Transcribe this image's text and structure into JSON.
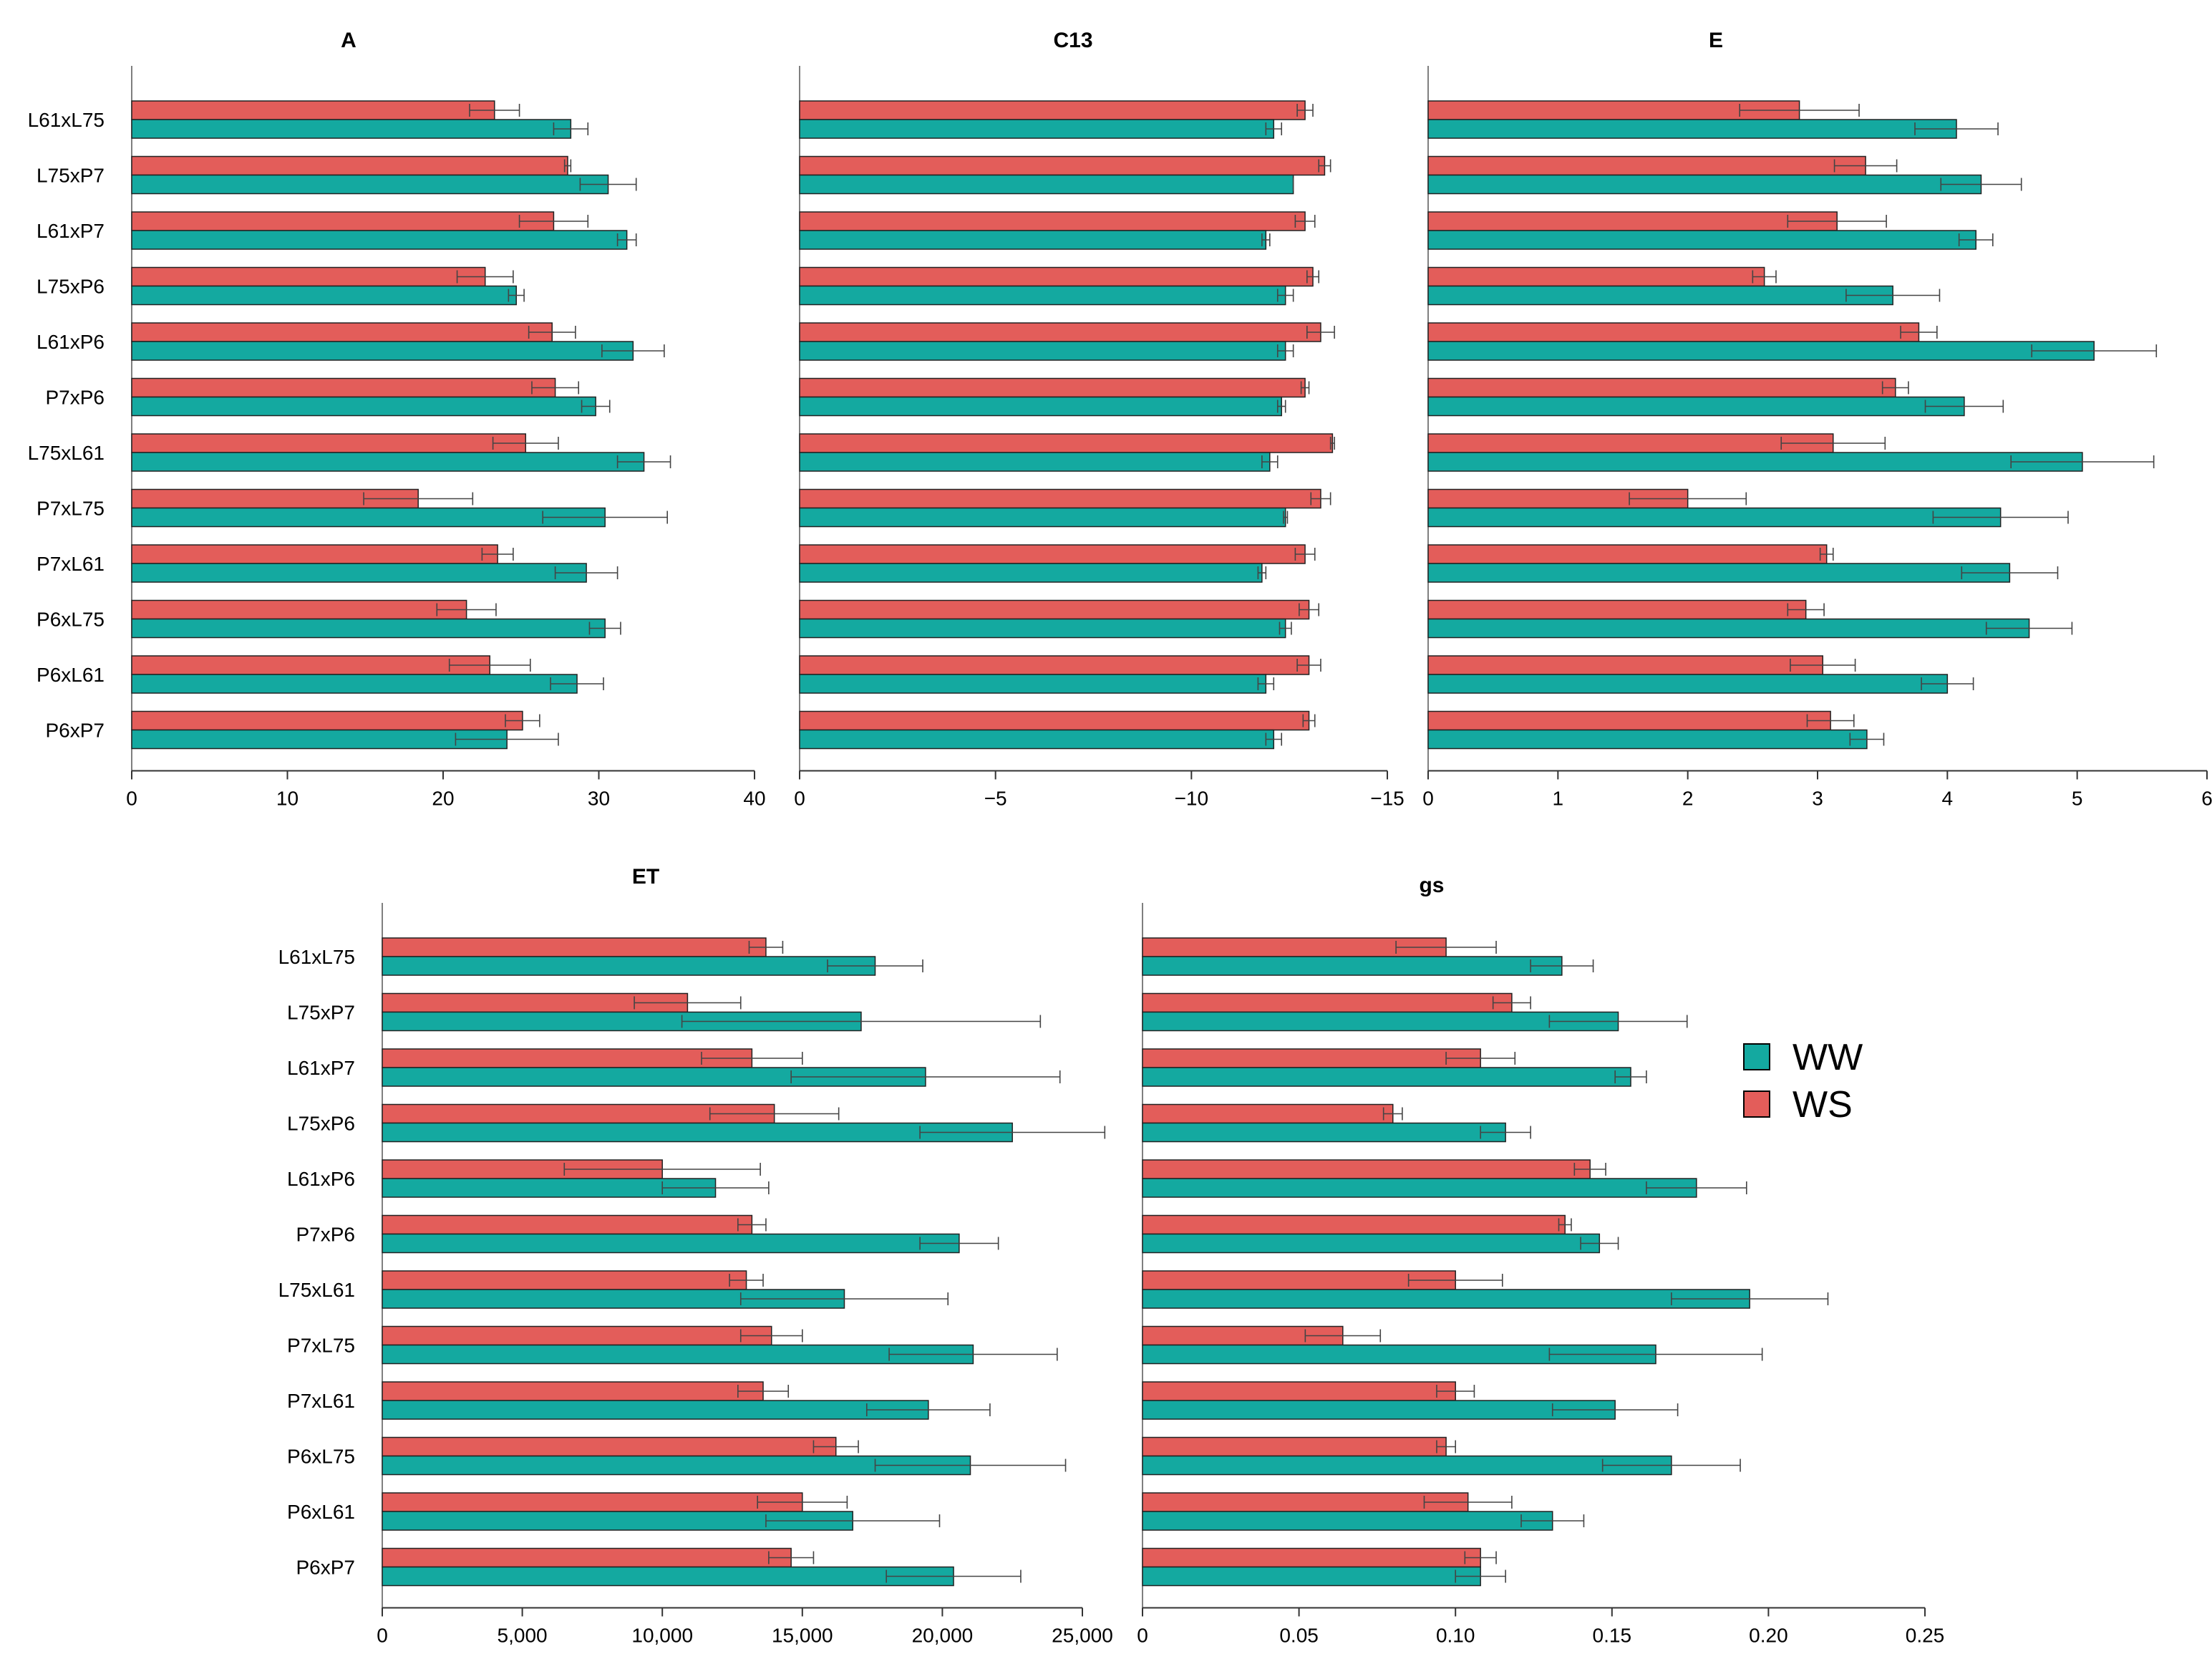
{
  "categories": [
    "L61xL75",
    "L75xP7",
    "L61xP7",
    "L75xP6",
    "L61xP6",
    "P7xP6",
    "L75xL61",
    "P7xL75",
    "P7xL61",
    "P6xL75",
    "P6xL61",
    "P6xP7"
  ],
  "legend": [
    {
      "label": "WW",
      "color": "#14a9a0"
    },
    {
      "label": "WS",
      "color": "#e35d5a"
    }
  ],
  "colors": {
    "WW": "#14a9a0",
    "WS": "#e35d5a"
  },
  "chart_data": [
    {
      "type": "bar",
      "orientation": "horizontal",
      "title": "A",
      "xlim": [
        0,
        40
      ],
      "xticks": [
        0,
        10,
        20,
        30,
        40
      ],
      "tick_labels": [
        "0",
        "10",
        "20",
        "30",
        "40"
      ],
      "ww": [
        28.2,
        30.6,
        31.8,
        24.7,
        32.2,
        29.8,
        32.9,
        30.4,
        29.2,
        30.4,
        28.6,
        24.1
      ],
      "ww_err": [
        1.1,
        1.8,
        0.6,
        0.5,
        2.0,
        0.9,
        1.7,
        4.0,
        2.0,
        1.0,
        1.7,
        3.3
      ],
      "ws": [
        23.3,
        28.0,
        27.1,
        22.7,
        27.0,
        27.2,
        25.3,
        18.4,
        23.5,
        21.5,
        23.0,
        25.1
      ],
      "ws_err": [
        1.6,
        0.2,
        2.2,
        1.8,
        1.5,
        1.5,
        2.1,
        3.5,
        1.0,
        1.9,
        2.6,
        1.1
      ]
    },
    {
      "type": "bar",
      "orientation": "horizontal",
      "title": "C13",
      "xlim": [
        0,
        -15
      ],
      "xticks": [
        0,
        -5,
        -10,
        -15
      ],
      "tick_labels": [
        "0",
        "−5",
        "−10",
        "−15"
      ],
      "ww": [
        -12.1,
        -12.6,
        -11.9,
        -12.4,
        -12.4,
        -12.3,
        -12.0,
        -12.4,
        -11.8,
        -12.4,
        -11.9,
        -12.1
      ],
      "ww_err": [
        0.2,
        0.0,
        0.1,
        0.2,
        0.2,
        0.1,
        0.2,
        0.05,
        0.1,
        0.15,
        0.2,
        0.2
      ],
      "ws": [
        -12.9,
        -13.4,
        -12.9,
        -13.1,
        -13.3,
        -12.9,
        -13.6,
        -13.3,
        -12.9,
        -13.0,
        -13.0,
        -13.0
      ],
      "ws_err": [
        0.2,
        0.15,
        0.25,
        0.15,
        0.35,
        0.1,
        0.05,
        0.25,
        0.25,
        0.25,
        0.3,
        0.15
      ]
    },
    {
      "type": "bar",
      "orientation": "horizontal",
      "title": "E",
      "xlim": [
        0,
        6
      ],
      "xticks": [
        0,
        1,
        2,
        3,
        4,
        5,
        6
      ],
      "tick_labels": [
        "0",
        "1",
        "2",
        "3",
        "4",
        "5",
        "6"
      ],
      "ww": [
        4.07,
        4.26,
        4.22,
        3.58,
        5.13,
        4.13,
        5.04,
        4.41,
        4.48,
        4.63,
        4.0,
        3.38
      ],
      "ww_err": [
        0.32,
        0.31,
        0.13,
        0.36,
        0.48,
        0.3,
        0.55,
        0.52,
        0.37,
        0.33,
        0.2,
        0.13
      ],
      "ws": [
        2.86,
        3.37,
        3.15,
        2.59,
        3.78,
        3.6,
        3.12,
        2.0,
        3.07,
        2.91,
        3.04,
        3.1
      ],
      "ws_err": [
        0.46,
        0.24,
        0.38,
        0.09,
        0.14,
        0.1,
        0.4,
        0.45,
        0.05,
        0.14,
        0.25,
        0.18
      ]
    },
    {
      "type": "bar",
      "orientation": "horizontal",
      "title": "ET",
      "xlim": [
        0,
        25000
      ],
      "xticks": [
        0,
        5000,
        10000,
        15000,
        20000,
        25000
      ],
      "tick_labels": [
        "0",
        "5,000",
        "10,000",
        "15,000",
        "20,000",
        "25,000"
      ],
      "ww": [
        17600,
        17100,
        19400,
        22500,
        11900,
        20600,
        16500,
        21100,
        19500,
        21000,
        16800,
        20400
      ],
      "ww_err": [
        1700,
        6400,
        4800,
        3300,
        1900,
        1400,
        3700,
        3000,
        2200,
        3400,
        3100,
        2400
      ],
      "ws": [
        13700,
        10900,
        13200,
        14000,
        10000,
        13200,
        13000,
        13900,
        13600,
        16200,
        15000,
        14600
      ],
      "ws_err": [
        600,
        1900,
        1800,
        2300,
        3500,
        500,
        600,
        1100,
        900,
        800,
        1600,
        800
      ]
    },
    {
      "type": "bar",
      "orientation": "horizontal",
      "title": "gs",
      "xlim": [
        0,
        0.25
      ],
      "xticks": [
        0,
        0.05,
        0.1,
        0.15,
        0.2,
        0.25
      ],
      "tick_labels": [
        "0",
        "0.05",
        "0.10",
        "0.15",
        "0.20",
        "0.25"
      ],
      "ww": [
        0.134,
        0.152,
        0.156,
        0.116,
        0.177,
        0.146,
        0.194,
        0.164,
        0.151,
        0.169,
        0.131,
        0.108
      ],
      "ww_err": [
        0.01,
        0.022,
        0.005,
        0.008,
        0.016,
        0.006,
        0.025,
        0.034,
        0.02,
        0.022,
        0.01,
        0.008
      ],
      "ws": [
        0.097,
        0.118,
        0.108,
        0.08,
        0.143,
        0.135,
        0.1,
        0.064,
        0.1,
        0.097,
        0.104,
        0.108
      ],
      "ws_err": [
        0.016,
        0.006,
        0.011,
        0.003,
        0.005,
        0.002,
        0.015,
        0.012,
        0.006,
        0.003,
        0.014,
        0.005
      ]
    }
  ]
}
